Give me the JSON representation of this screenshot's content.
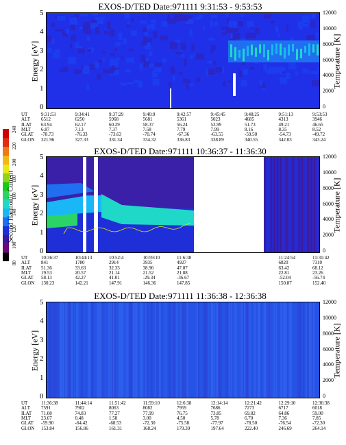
{
  "colorbar": {
    "label": "Second Harmonic Current",
    "ticks": [
      "80",
      "100",
      "120",
      "140",
      "160",
      "180",
      "200",
      "220",
      "240"
    ],
    "colors": [
      "#000000",
      "#6a0a7a",
      "#3d1a9a",
      "#1f2fd8",
      "#1f6ff0",
      "#19b7f5",
      "#20d8c8",
      "#2cd468",
      "#19c919",
      "#8fd419",
      "#e8e819",
      "#f2b818",
      "#ee7a16",
      "#e02d12",
      "#cc0000"
    ]
  },
  "panels": [
    {
      "title": "EXOS-D/TED   Date:971111  9:31:53 - 9:53:53",
      "ylabel": "Energy [eV]",
      "rlabel": "Temperature [K]",
      "yticks": [
        "5",
        "4",
        "3",
        "2",
        "1",
        "0"
      ],
      "rticks": [
        "12000",
        "10000",
        "8000",
        "6000",
        "4000",
        "2000",
        "0"
      ],
      "eph_labels": [
        "UT",
        "ALT",
        "ILAT",
        "MLT",
        "GLAT",
        "GLON"
      ],
      "eph_cols": [
        [
          "9:31:53",
          "6512",
          "63.94",
          "6.87",
          "-78.73",
          "321.96"
        ],
        [
          "9:34:41",
          "6250",
          "62.17",
          "7.13",
          "-76.33",
          "327.33"
        ],
        [
          "9:37:29",
          "5968",
          "60.29",
          "7.37",
          "-73.63",
          "331.34"
        ],
        [
          "9:40:9",
          "5681",
          "58.37",
          "7.58",
          "-70.74",
          "334.32"
        ],
        [
          "9:42:57",
          "5361",
          "56.24",
          "7.79",
          "-67.36",
          "336.83"
        ],
        [
          "9:45:45",
          "5023",
          "53.99",
          "7.99",
          "-63.55",
          "338.89"
        ],
        [
          "9:48:25",
          "4685",
          "51.73",
          "8.16",
          "-59.50",
          "340.55"
        ],
        [
          "9:51:13",
          "4313",
          "49.21",
          "8.35",
          "-54.73",
          "342.03"
        ],
        [
          "9:53:53",
          "3946",
          "46.65",
          "8.52",
          "-49.72",
          "343.24"
        ]
      ]
    },
    {
      "title": "EXOS-D/TED   Date:971111  10:36:37 - 11:36:30",
      "ylabel": "Energy [eV]",
      "rlabel": "Temperature [K]",
      "yticks": [
        "5",
        "4",
        "3",
        "2",
        "1",
        "0"
      ],
      "rticks": [
        "12000",
        "10000",
        "8000",
        "6000",
        "4000",
        "2000",
        "0"
      ],
      "eph_labels": [
        "UT",
        "ALT",
        "ILAT",
        "MLT",
        "GLAT",
        "GLON"
      ],
      "eph_cols": [
        [
          "10:36:37",
          "841",
          "51.36",
          "19.53",
          "58.13",
          "130.23"
        ],
        [
          "10:44:13",
          "1780",
          "33.63",
          "20.57",
          "42.27",
          "142.21"
        ],
        [
          "10:52:4",
          "2914",
          "32.33",
          "21.14",
          "41.01",
          "147.91"
        ],
        [
          "10:59:10",
          "3935",
          "38.96",
          "21.52",
          "-29.34",
          "146.36"
        ],
        [
          "11:6:38",
          "4927",
          "47.07",
          "21.88",
          "-36.67",
          "147.85"
        ],
        [
          "",
          "",
          "",
          "",
          "",
          ""
        ],
        [
          "",
          "",
          "",
          "",
          "",
          ""
        ],
        [
          "11:24:54",
          "6820",
          "63.42",
          "22.81",
          "-52.04",
          "150.87"
        ],
        [
          "11:31:42",
          "7310",
          "68.12",
          "23.26",
          "-56.74",
          "152.40"
        ]
      ]
    },
    {
      "title": "EXOS-D/TED   Date:971111  11:36:38 - 12:36:38",
      "ylabel": "Energy [eV]",
      "rlabel": "Temperature [K]",
      "yticks": [
        "5",
        "4",
        "3",
        "2",
        "1",
        "0"
      ],
      "rticks": [
        "12000",
        "10000",
        "8000",
        "6000",
        "4000",
        "2000",
        "0"
      ],
      "eph_labels": [
        "UT",
        "ALT",
        "ILAT",
        "MLT",
        "GLAT",
        "GLON"
      ],
      "eph_cols": [
        [
          "11:36:38",
          "7591",
          "71.08",
          "23.67",
          "-59.90",
          "153.84"
        ],
        [
          "11:44:14",
          "7902",
          "74.83",
          "0.48",
          "-64.42",
          "156.86"
        ],
        [
          "11:51:42",
          "8063",
          "77.27",
          "1.58",
          "-68.53",
          "161.31"
        ],
        [
          "11:59:10",
          "8082",
          "77.99",
          "3.00",
          "-72.30",
          "168.24"
        ],
        [
          "12:6:38",
          "7959",
          "76.75",
          "4.50",
          "-75.58",
          "179.39"
        ],
        [
          "12:14:14",
          "7686",
          "73.85",
          "5.78",
          "-77.97",
          "197.64"
        ],
        [
          "12:21:42",
          "7273",
          "69.82",
          "6.70",
          "-78.50",
          "222.40"
        ],
        [
          "12:29:10",
          "6717",
          "64.86",
          "7.36",
          "-76.54",
          "246.69"
        ],
        [
          "12:36:38",
          "6018",
          "59.00",
          "7.85",
          "-72.30",
          "264.14"
        ]
      ]
    }
  ],
  "chart_data": [
    {
      "type": "heatmap",
      "title": "EXOS-D/TED   Date:971111  9:31:53 - 9:53:53",
      "ylabel": "Energy [eV]",
      "ylim": [
        0,
        5
      ],
      "y2label": "Temperature [K]",
      "y2lim": [
        0,
        12000
      ],
      "xlabel": "UT",
      "xlim": [
        "9:31:53",
        "9:53:53"
      ],
      "colorbar": {
        "label": "Second Harmonic Current",
        "range": [
          80,
          240
        ]
      }
    },
    {
      "type": "heatmap",
      "title": "EXOS-D/TED   Date:971111  10:36:37 - 11:36:30",
      "ylabel": "Energy [eV]",
      "ylim": [
        0,
        5
      ],
      "y2label": "Temperature [K]",
      "y2lim": [
        0,
        12000
      ],
      "xlabel": "UT",
      "xlim": [
        "10:36:37",
        "11:36:30"
      ],
      "colorbar": {
        "label": "Second Harmonic Current",
        "range": [
          80,
          240
        ]
      }
    },
    {
      "type": "heatmap",
      "title": "EXOS-D/TED   Date:971111  11:36:38 - 12:36:38",
      "ylabel": "Energy [eV]",
      "ylim": [
        0,
        5
      ],
      "y2label": "Temperature [K]",
      "y2lim": [
        0,
        12000
      ],
      "xlabel": "UT",
      "xlim": [
        "11:36:38",
        "12:36:38"
      ],
      "colorbar": {
        "label": "Second Harmonic Current",
        "range": [
          80,
          240
        ]
      }
    }
  ]
}
